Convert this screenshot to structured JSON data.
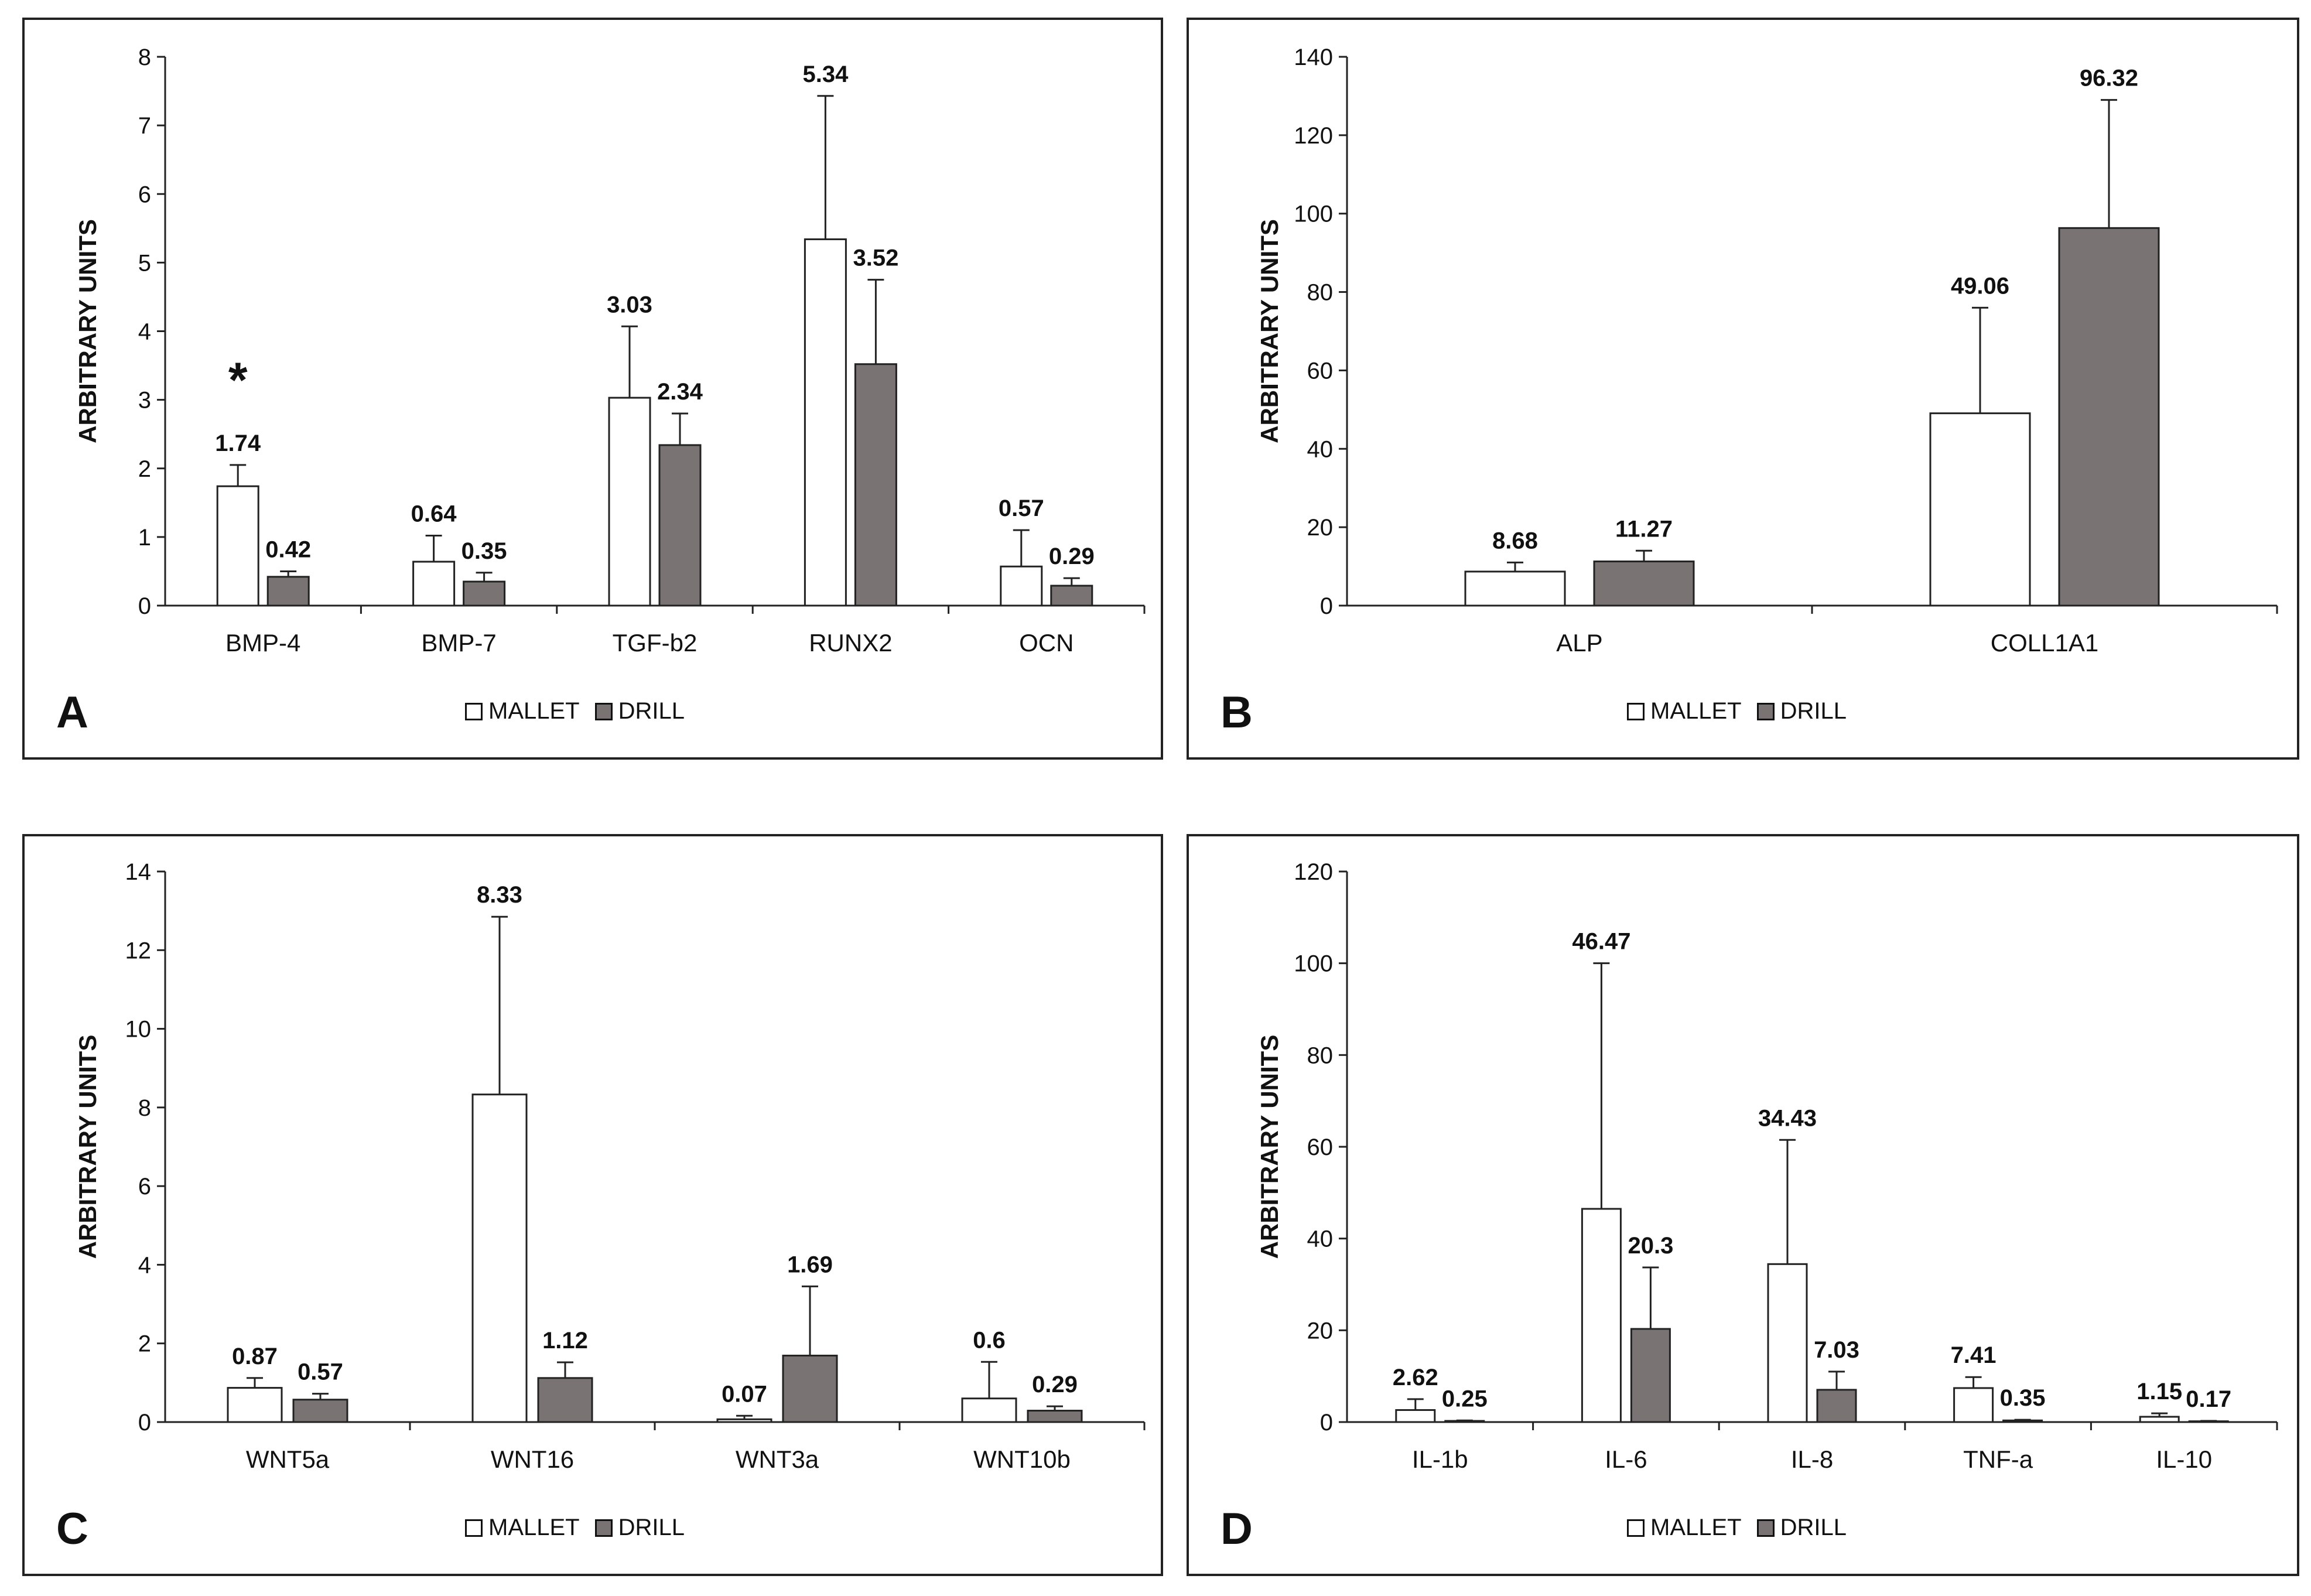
{
  "legend": {
    "mallet": "MALLET",
    "drill": "DRILL"
  },
  "colors": {
    "mallet": "#ffffff",
    "drill": "#7a7373",
    "axis": "#222222"
  },
  "chart_data": [
    {
      "id": "a",
      "panel_label": "A",
      "type": "bar",
      "ylabel": "ARBITRARY  UNITS",
      "ylim": [
        0,
        8
      ],
      "ystep": 1,
      "categories": [
        "BMP-4",
        "BMP-7",
        "TGF-b2",
        "RUNX2",
        "OCN"
      ],
      "series": [
        {
          "name": "MALLET",
          "values": [
            1.74,
            0.64,
            3.03,
            5.34,
            0.57
          ],
          "labels": [
            "1.74",
            "0.64",
            "3.03",
            "5.34",
            "0.57"
          ],
          "err_top": [
            2.05,
            1.02,
            4.07,
            7.43,
            1.1
          ]
        },
        {
          "name": "DRILL",
          "values": [
            0.42,
            0.35,
            2.34,
            3.52,
            0.29
          ],
          "labels": [
            "0.42",
            "0.35",
            "2.34",
            "3.52",
            "0.29"
          ],
          "err_top": [
            0.5,
            0.48,
            2.8,
            4.75,
            0.4
          ]
        }
      ],
      "annotations": [
        {
          "text": "*",
          "category": 0,
          "series": 0,
          "y": 3.3
        }
      ]
    },
    {
      "id": "b",
      "panel_label": "B",
      "type": "bar",
      "ylabel": "ARBITRARY  UNITS",
      "ylim": [
        0,
        140
      ],
      "ystep": 20,
      "categories": [
        "ALP",
        "COLL1A1"
      ],
      "series": [
        {
          "name": "MALLET",
          "values": [
            8.68,
            49.06
          ],
          "labels": [
            "8.68",
            "49.06"
          ],
          "err_top": [
            11.0,
            76.0
          ]
        },
        {
          "name": "DRILL",
          "values": [
            11.27,
            96.32
          ],
          "labels": [
            "11.27",
            "96.32"
          ],
          "err_top": [
            14.0,
            129.0
          ]
        }
      ],
      "annotations": []
    },
    {
      "id": "c",
      "panel_label": "C",
      "type": "bar",
      "ylabel": "ARBITRARY  UNITS",
      "ylim": [
        0,
        14
      ],
      "ystep": 2,
      "categories": [
        "WNT5a",
        "WNT16",
        "WNT3a",
        "WNT10b"
      ],
      "series": [
        {
          "name": "MALLET",
          "values": [
            0.87,
            8.33,
            0.07,
            0.6
          ],
          "labels": [
            "0.87",
            "8.33",
            "0.07",
            "0.6"
          ],
          "err_top": [
            1.12,
            12.85,
            0.16,
            1.53
          ]
        },
        {
          "name": "DRILL",
          "values": [
            0.57,
            1.12,
            1.69,
            0.29
          ],
          "labels": [
            "0.57",
            "1.12",
            "1.69",
            "0.29"
          ],
          "err_top": [
            0.72,
            1.52,
            3.45,
            0.4
          ]
        }
      ],
      "annotations": []
    },
    {
      "id": "d",
      "panel_label": "D",
      "type": "bar",
      "ylabel": "ARBITRARY  UNITS",
      "ylim": [
        0,
        120
      ],
      "ystep": 20,
      "categories": [
        "IL-1b",
        "IL-6",
        "IL-8",
        "TNF-a",
        "IL-10"
      ],
      "series": [
        {
          "name": "MALLET",
          "values": [
            2.62,
            46.47,
            34.43,
            7.41,
            1.15
          ],
          "labels": [
            "2.62",
            "46.47",
            "34.43",
            "7.41",
            "1.15"
          ],
          "err_top": [
            5.0,
            100.0,
            61.5,
            9.8,
            1.9
          ]
        },
        {
          "name": "DRILL",
          "values": [
            0.25,
            20.3,
            7.03,
            0.35,
            0.17
          ],
          "labels": [
            "0.25",
            "20.3",
            "7.03",
            "0.35",
            "0.17"
          ],
          "err_top": [
            0.35,
            33.7,
            11.0,
            0.5,
            0.25
          ]
        }
      ],
      "annotations": []
    }
  ]
}
